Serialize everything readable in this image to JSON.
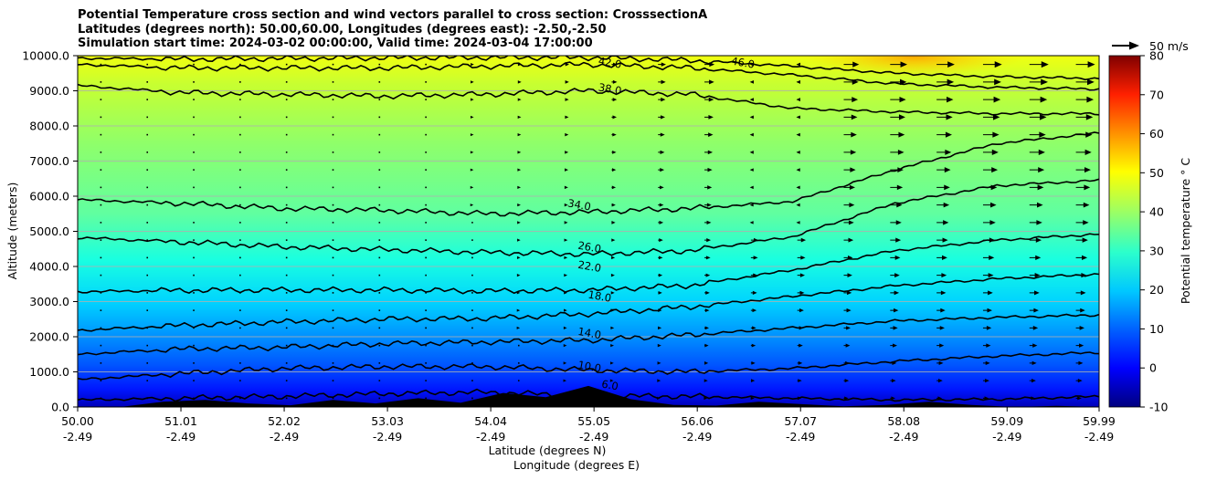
{
  "chart_data": {
    "type": "heatmap",
    "title_lines": [
      "Potential Temperature cross section and wind vectors parallel to cross section: CrosssectionA",
      "Latitudes (degrees north): 50.00,60.00, Longitudes (degrees east): -2.50,-2.50",
      "Simulation start time: 2024-03-02 00:00:00, Valid time: 2024-03-04 17:00:00"
    ],
    "xlabel_lat": "Latitude (degrees N)",
    "xlabel_lon": "Longitude (degrees E)",
    "ylabel": "Altitude (meters)",
    "x_range": [
      50.0,
      59.99
    ],
    "ylim": [
      0,
      10000
    ],
    "x_ticks": [
      {
        "lat": "50.00",
        "lon": "-2.49"
      },
      {
        "lat": "51.01",
        "lon": "-2.49"
      },
      {
        "lat": "52.02",
        "lon": "-2.49"
      },
      {
        "lat": "53.03",
        "lon": "-2.49"
      },
      {
        "lat": "54.04",
        "lon": "-2.49"
      },
      {
        "lat": "55.05",
        "lon": "-2.49"
      },
      {
        "lat": "56.06",
        "lon": "-2.49"
      },
      {
        "lat": "57.07",
        "lon": "-2.49"
      },
      {
        "lat": "58.08",
        "lon": "-2.49"
      },
      {
        "lat": "59.09",
        "lon": "-2.49"
      },
      {
        "lat": "59.99",
        "lon": "-2.49"
      }
    ],
    "y_ticks": [
      "0.0",
      "1000.0",
      "2000.0",
      "3000.0",
      "4000.0",
      "5000.0",
      "6000.0",
      "7000.0",
      "8000.0",
      "9000.0",
      "10000.0"
    ],
    "grid": "horizontal",
    "colorbar": {
      "label": "Potential temperature ° C",
      "range": [
        -10,
        80
      ],
      "ticks": [
        -10,
        0,
        10,
        20,
        30,
        40,
        50,
        60,
        70,
        80
      ],
      "colormap": "jet"
    },
    "wind_key": {
      "label": "50 m/s"
    },
    "contours": [
      {
        "level": "6.0",
        "label_pos": [
          55.2,
          520
        ],
        "heights": [
          200,
          250,
          300,
          380,
          420,
          320,
          300,
          250,
          200,
          220,
          300
        ]
      },
      {
        "level": "10.0",
        "label_pos": [
          55.0,
          1050
        ],
        "heights": [
          780,
          950,
          1100,
          1150,
          1150,
          1050,
          1000,
          1100,
          1300,
          1450,
          1550
        ]
      },
      {
        "level": "14.0",
        "label_pos": [
          55.0,
          2000
        ],
        "heights": [
          1500,
          1650,
          1700,
          1800,
          1850,
          1900,
          2050,
          2250,
          2450,
          2550,
          2620
        ]
      },
      {
        "level": "18.0",
        "label_pos": [
          55.1,
          3050
        ],
        "heights": [
          2180,
          2320,
          2420,
          2500,
          2520,
          2650,
          2850,
          3150,
          3450,
          3650,
          3780
        ]
      },
      {
        "level": "22.0",
        "label_pos": [
          55.0,
          3900
        ],
        "heights": [
          3280,
          3320,
          3330,
          3330,
          3300,
          3330,
          3460,
          3900,
          4450,
          4750,
          4920
        ]
      },
      {
        "level": "26.0",
        "label_pos": [
          55.0,
          4450
        ],
        "heights": [
          4820,
          4700,
          4560,
          4480,
          4400,
          4350,
          4450,
          4850,
          5800,
          6300,
          6450
        ]
      },
      {
        "level": "34.0",
        "label_pos": [
          54.9,
          5650
        ],
        "heights": [
          5900,
          5800,
          5650,
          5600,
          5500,
          5550,
          5650,
          5850,
          6750,
          7500,
          7800
        ]
      },
      {
        "level": "38.0",
        "label_pos": [
          55.2,
          8950
        ],
        "heights": [
          9150,
          8950,
          8900,
          8850,
          8900,
          9000,
          8900,
          8500,
          8400,
          8350,
          8350
        ]
      },
      {
        "level": "42.0",
        "label_pos": [
          55.2,
          9700
        ],
        "heights": [
          9750,
          9650,
          9650,
          9650,
          9700,
          9750,
          9650,
          9450,
          9200,
          9100,
          9050
        ]
      },
      {
        "level": "46.0",
        "label_pos": [
          56.5,
          9700
        ],
        "heights": [
          9930,
          9900,
          9920,
          9940,
          9950,
          9950,
          9870,
          9700,
          9500,
          9400,
          9350
        ]
      }
    ],
    "terrain_heights": [
      0,
      0,
      150,
      200,
      100,
      50,
      200,
      100,
      250,
      120,
      400,
      280,
      600,
      220,
      60,
      40,
      150,
      80,
      20,
      60,
      150,
      60,
      0,
      30,
      0
    ],
    "wind_u": [
      0,
      0,
      0,
      0,
      5,
      12,
      25,
      35,
      45,
      50,
      50
    ]
  }
}
